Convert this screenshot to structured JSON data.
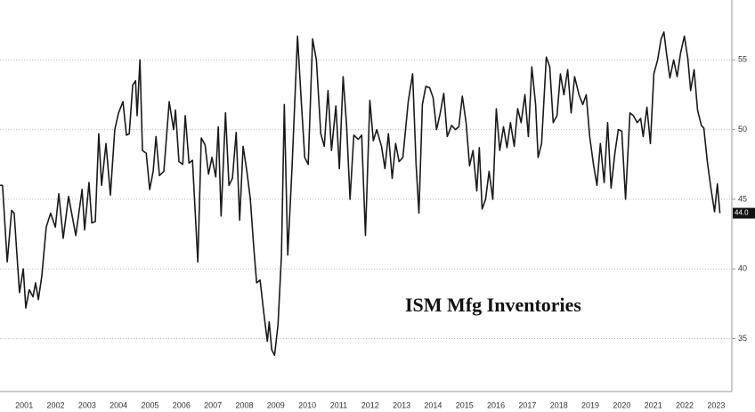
{
  "chart_data": {
    "type": "line",
    "title": "ISM Mfg Inventories",
    "last_value_label": "44.0",
    "series": [
      {
        "color": "#1a1a1a",
        "x": [
          2000.73,
          2000.81,
          2000.96,
          2001.1,
          2001.18,
          2001.35,
          2001.47,
          2001.55,
          2001.66,
          2001.78,
          2001.86,
          2001.95,
          2002.06,
          2002.2,
          2002.34,
          2002.49,
          2002.6,
          2002.74,
          2002.91,
          2003.14,
          2003.34,
          2003.42,
          2003.56,
          2003.65,
          2003.76,
          2003.87,
          2003.96,
          2004.1,
          2004.24,
          2004.38,
          2004.5,
          2004.64,
          2004.75,
          2004.84,
          2004.95,
          2005.04,
          2005.09,
          2005.18,
          2005.26,
          2005.38,
          2005.49,
          2005.6,
          2005.69,
          2005.8,
          2005.94,
          2006.11,
          2006.25,
          2006.31,
          2006.42,
          2006.54,
          2006.62,
          2006.74,
          2006.85,
          2007.02,
          2007.13,
          2007.25,
          2007.36,
          2007.47,
          2007.59,
          2007.67,
          2007.76,
          2007.9,
          2008.01,
          2008.12,
          2008.24,
          2008.35,
          2008.46,
          2008.58,
          2008.69,
          2008.8,
          2008.89,
          2009.0,
          2009.12,
          2009.23,
          2009.29,
          2009.37,
          2009.46,
          2009.57,
          2009.68,
          2009.77,
          2009.88,
          2010.02,
          2010.19,
          2010.31,
          2010.42,
          2010.53,
          2010.67,
          2010.79,
          2010.93,
          2011.04,
          2011.16,
          2011.27,
          2011.41,
          2011.52,
          2011.64,
          2011.75,
          2011.86,
          2011.98,
          2012.12,
          2012.23,
          2012.35,
          2012.49,
          2012.6,
          2012.71,
          2012.86,
          2012.97,
          2013.08,
          2013.2,
          2013.31,
          2013.42,
          2013.54,
          2013.71,
          2013.85,
          2013.96,
          2014.05,
          2014.16,
          2014.27,
          2014.39,
          2014.5,
          2014.61,
          2014.73,
          2014.84,
          2014.95,
          2015.09,
          2015.21,
          2015.32,
          2015.43,
          2015.55,
          2015.66,
          2015.77,
          2015.89,
          2015.97,
          2016.06,
          2016.17,
          2016.28,
          2016.4,
          2016.51,
          2016.62,
          2016.74,
          2016.85,
          2016.96,
          2017.08,
          2017.19,
          2017.3,
          2017.42,
          2017.53,
          2017.64,
          2017.76,
          2017.84,
          2017.95,
          2018.1,
          2018.21,
          2018.32,
          2018.44,
          2018.55,
          2018.66,
          2018.78,
          2018.89,
          2019.0,
          2019.14,
          2019.26,
          2019.37,
          2019.48,
          2019.6,
          2019.71,
          2019.82,
          2019.94,
          2020.05,
          2020.16,
          2020.28,
          2020.39,
          2020.5,
          2020.62,
          2020.76,
          2020.87,
          2020.99,
          2021.1,
          2021.18,
          2021.3,
          2021.41,
          2021.52,
          2021.64,
          2021.75,
          2021.84,
          2021.92,
          2022.03,
          2022.15,
          2022.26,
          2022.37,
          2022.49,
          2022.6,
          2022.69,
          2022.8,
          2022.91,
          2023.03,
          2023.11,
          2023.22,
          2023.34,
          2023.45,
          2023.54,
          2023.62
        ],
        "values": [
          46,
          46,
          40.5,
          44.2,
          44,
          38.3,
          40,
          37.2,
          38.5,
          38,
          39,
          37.8,
          39.5,
          43,
          44,
          43,
          45.4,
          42.2,
          45.2,
          42.4,
          45.7,
          42.8,
          46.2,
          43.3,
          43.4,
          49.7,
          46,
          49,
          45.3,
          50,
          51.2,
          52,
          49.6,
          49.7,
          53.2,
          53.5,
          51,
          55,
          48.5,
          48.3,
          45.7,
          47,
          49.5,
          46.7,
          47,
          52,
          50,
          51.4,
          47.7,
          47.5,
          51,
          47.6,
          47.8,
          40.5,
          49.4,
          48.9,
          46.8,
          48,
          46.6,
          50.2,
          43.8,
          51.2,
          46,
          46.5,
          49.8,
          43.5,
          48.8,
          47,
          45,
          41.5,
          39,
          39.2,
          36.8,
          34.8,
          36.2,
          34.2,
          33.8,
          36,
          41,
          51.8,
          41,
          47.5,
          56.7,
          52,
          48,
          47.5,
          56.5,
          55,
          49.7,
          48.8,
          52.8,
          48.5,
          51.7,
          47.2,
          53.8,
          50.3,
          45,
          49.6,
          49.3,
          49.6,
          42.4,
          52.1,
          49.2,
          50,
          48.8,
          47.2,
          49.7,
          46.5,
          49,
          47.7,
          48,
          52,
          54,
          47.5,
          44,
          51.8,
          53.1,
          53,
          52.3,
          50,
          51.2,
          52.6,
          49.5,
          50.3,
          50,
          50.2,
          52.4,
          50.5,
          47.4,
          48.5,
          45.6,
          48.7,
          44.3,
          45,
          47,
          45,
          51.5,
          48.5,
          50.2,
          48.7,
          50.5,
          48.8,
          51.5,
          50.5,
          52.5,
          49.5,
          54.5,
          51.8,
          48,
          49,
          55.2,
          54.5,
          50.5,
          51,
          54,
          52.5,
          54.3,
          51.2,
          53.8,
          52.5,
          51.8,
          52.5,
          49.5,
          47.5,
          46,
          49,
          46.2,
          50.5,
          45.8,
          48.3,
          50,
          49.9,
          45,
          51.2,
          51,
          50.5,
          50.8,
          49.5,
          51.6,
          49,
          54,
          55,
          56.5,
          57,
          55.5,
          53.7,
          55,
          53.8,
          55.5,
          56.7,
          55.1,
          52.8,
          54.3,
          51.4,
          50.3,
          50.1,
          47.7,
          45.7,
          44.1,
          46.1,
          44.0
        ]
      }
    ],
    "xlim": [
      2000.73,
      2024.0
    ],
    "xticks": [
      {
        "value": 2001.5,
        "label": "2001"
      },
      {
        "value": 2002.5,
        "label": "2002"
      },
      {
        "value": 2003.5,
        "label": "2003"
      },
      {
        "value": 2004.5,
        "label": "2004"
      },
      {
        "value": 2005.5,
        "label": "2005"
      },
      {
        "value": 2006.5,
        "label": "2006"
      },
      {
        "value": 2007.5,
        "label": "2007"
      },
      {
        "value": 2008.5,
        "label": "2008"
      },
      {
        "value": 2009.5,
        "label": "2009"
      },
      {
        "value": 2010.5,
        "label": "2010"
      },
      {
        "value": 2011.5,
        "label": "2011"
      },
      {
        "value": 2012.5,
        "label": "2012"
      },
      {
        "value": 2013.5,
        "label": "2013"
      },
      {
        "value": 2014.5,
        "label": "2014"
      },
      {
        "value": 2015.5,
        "label": "2015"
      },
      {
        "value": 2016.5,
        "label": "2016"
      },
      {
        "value": 2017.5,
        "label": "2017"
      },
      {
        "value": 2018.5,
        "label": "2018"
      },
      {
        "value": 2019.5,
        "label": "2019"
      },
      {
        "value": 2020.5,
        "label": "2020"
      },
      {
        "value": 2021.5,
        "label": "2021"
      },
      {
        "value": 2022.5,
        "label": "2022"
      },
      {
        "value": 2023.5,
        "label": "2023"
      }
    ],
    "ylim": [
      31.2,
      59.3
    ],
    "yticks": [
      35,
      40,
      45,
      50,
      55
    ],
    "grid": true
  }
}
